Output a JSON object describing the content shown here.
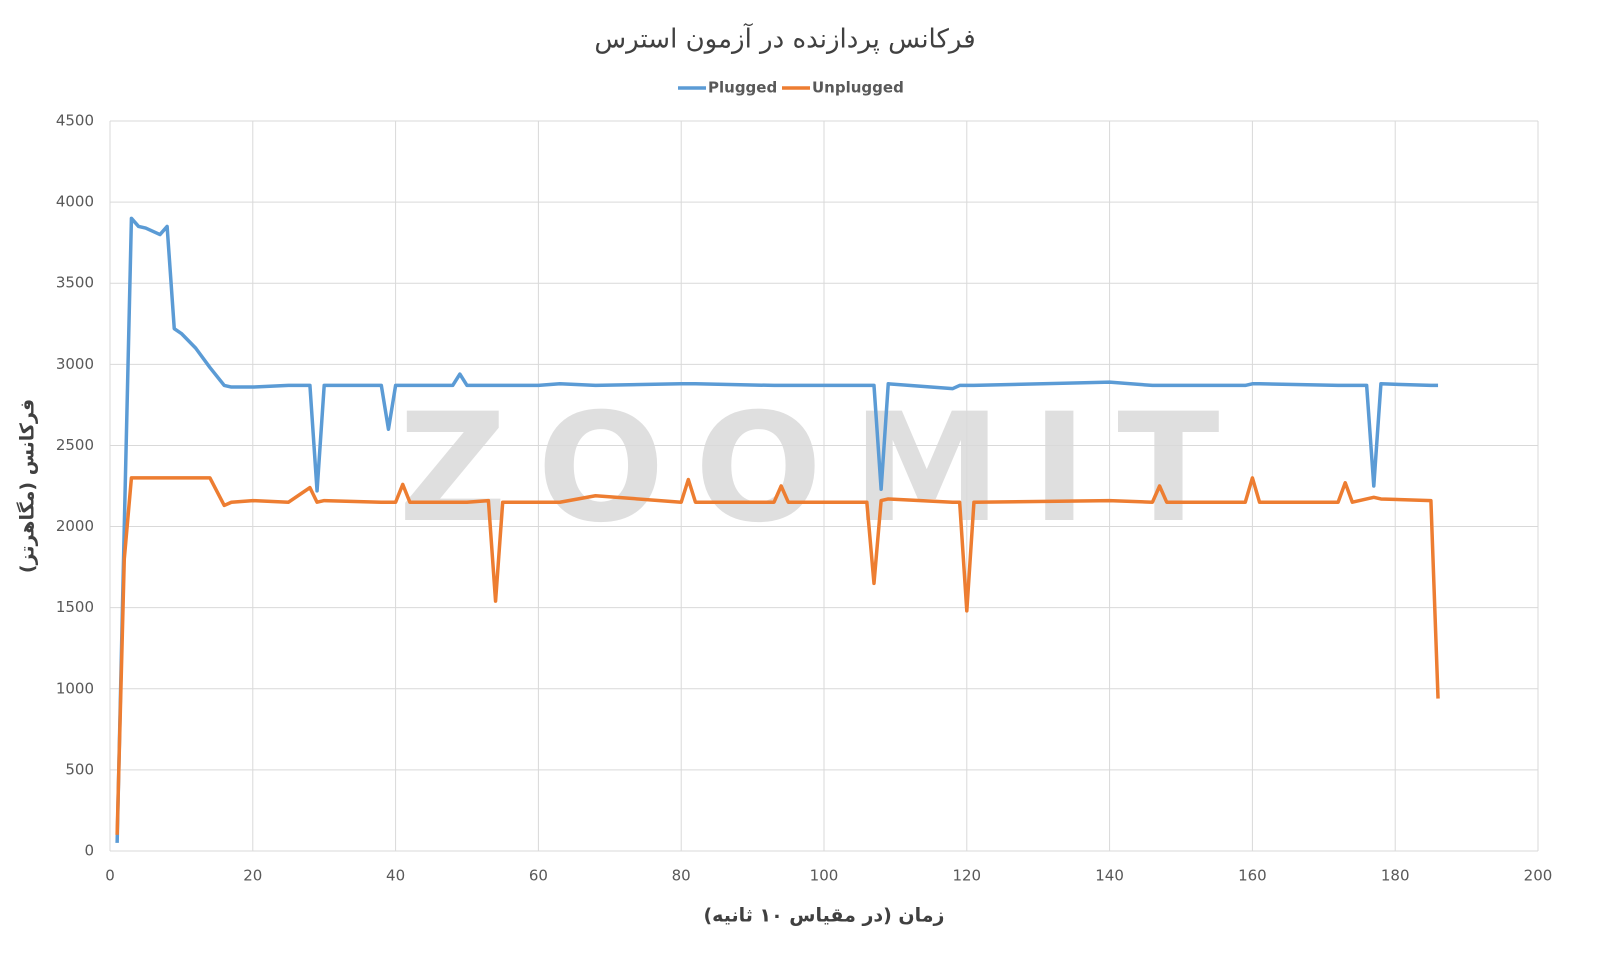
{
  "chart_data": {
    "type": "line",
    "title": "فرکانس پردازنده در آزمون استرس",
    "x_label": "زمان (در مقیاس ۱۰ ثانیه)",
    "y_label": "فرکانس (مگاهرتز)",
    "watermark": "ZOOMIT",
    "x": [
      1,
      2,
      3,
      4,
      5,
      6,
      7,
      8,
      9,
      10,
      12,
      14,
      16,
      17,
      20,
      25,
      28,
      29,
      30,
      38,
      39,
      40,
      41,
      42,
      48,
      49,
      50,
      53,
      54,
      55,
      60,
      63,
      68,
      80,
      81,
      82,
      93,
      94,
      95,
      106,
      107,
      108,
      109,
      118,
      119,
      120,
      121,
      140,
      146,
      147,
      148,
      159,
      160,
      161,
      172,
      173,
      174,
      176,
      177,
      178,
      185,
      186
    ],
    "series": [
      {
        "name": "Plugged",
        "color": "#5b9bd5",
        "values": [
          50,
          2000,
          3900,
          3850,
          3840,
          3820,
          3800,
          3850,
          3220,
          3190,
          3100,
          2980,
          2870,
          2860,
          2860,
          2870,
          2870,
          2220,
          2870,
          2870,
          2600,
          2870,
          2870,
          2870,
          2870,
          2940,
          2870,
          2870,
          2870,
          2870,
          2870,
          2880,
          2870,
          2880,
          2880,
          2880,
          2870,
          2870,
          2870,
          2870,
          2870,
          2230,
          2880,
          2850,
          2870,
          2870,
          2870,
          2890,
          2870,
          2870,
          2870,
          2870,
          2880,
          2880,
          2870,
          2870,
          2870,
          2870,
          2250,
          2880,
          2870,
          2870
        ]
      },
      {
        "name": "Unplugged",
        "color": "#ed7d31",
        "values": [
          100,
          1800,
          2300,
          2300,
          2300,
          2300,
          2300,
          2300,
          2300,
          2300,
          2300,
          2300,
          2130,
          2150,
          2160,
          2150,
          2240,
          2150,
          2160,
          2150,
          2150,
          2150,
          2260,
          2150,
          2150,
          2150,
          2150,
          2160,
          1540,
          2150,
          2150,
          2150,
          2190,
          2150,
          2290,
          2150,
          2150,
          2250,
          2150,
          2150,
          1650,
          2160,
          2170,
          2150,
          2150,
          1480,
          2150,
          2160,
          2150,
          2250,
          2150,
          2150,
          2300,
          2150,
          2150,
          2270,
          2150,
          2170,
          2180,
          2170,
          2160,
          940
        ]
      }
    ],
    "xlim": [
      0,
      200
    ],
    "xticks": [
      0,
      20,
      40,
      60,
      80,
      100,
      120,
      140,
      160,
      180,
      200
    ],
    "ylim": [
      0,
      4500
    ],
    "yticks": [
      0,
      500,
      1000,
      1500,
      2000,
      2500,
      3000,
      3500,
      4000,
      4500
    ],
    "grid": true,
    "legend": "top"
  }
}
